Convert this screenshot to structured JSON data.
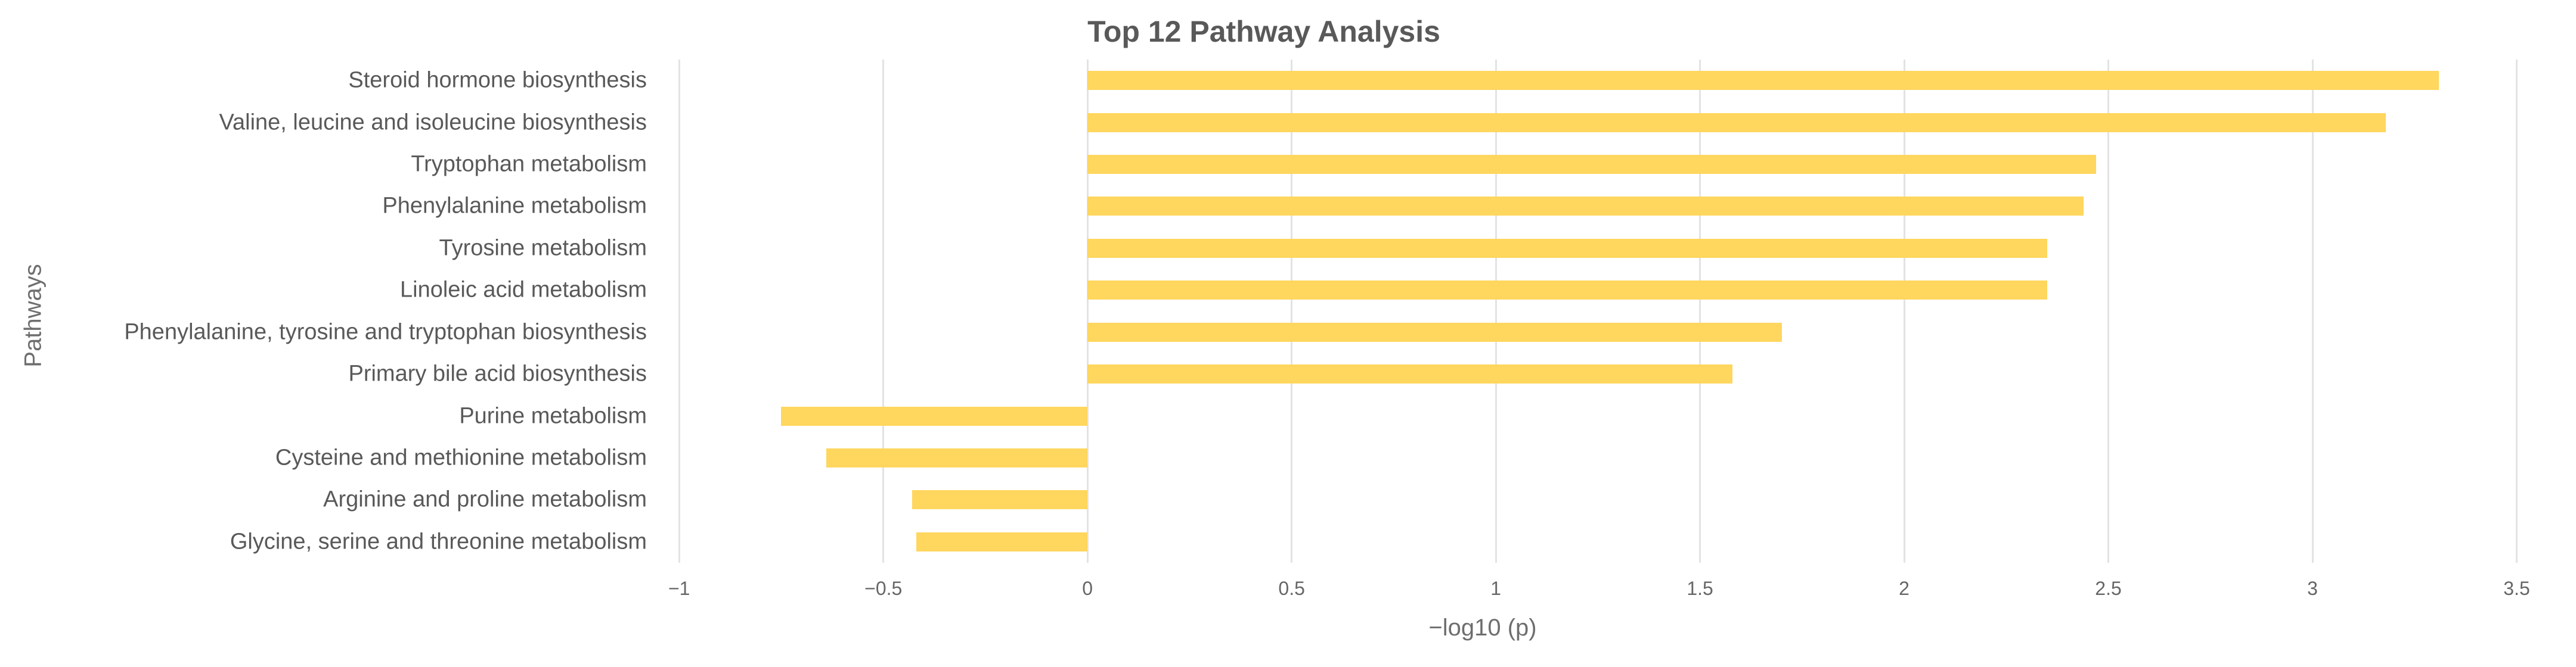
{
  "figure": {
    "title": "Top 12 Pathway Analysis"
  },
  "chart_data": {
    "type": "bar",
    "orientation": "horizontal",
    "title": "Top 12 Pathway Analysis",
    "xlabel": "−log10 (p)",
    "ylabel": "Pathways",
    "categories": [
      "Steroid hormone biosynthesis",
      "Valine, leucine and isoleucine biosynthesis",
      "Tryptophan metabolism",
      "Phenylalanine metabolism",
      "Tyrosine metabolism",
      "Linoleic acid metabolism",
      "Phenylalanine, tyrosine and tryptophan biosynthesis",
      "Primary bile acid biosynthesis",
      "Purine metabolism",
      "Cysteine and methionine metabolism",
      "Arginine and proline metabolism",
      "Glycine, serine and threonine metabolism"
    ],
    "values": [
      3.31,
      3.18,
      2.47,
      2.44,
      2.35,
      2.35,
      1.7,
      1.58,
      -0.75,
      -0.64,
      -0.43,
      -0.42
    ],
    "xlim": [
      -1.05,
      3.6
    ],
    "xticks": [
      -1,
      -0.5,
      0,
      0.5,
      1,
      1.5,
      2,
      2.5,
      3,
      3.5
    ],
    "xtick_labels": [
      "−1",
      "−0.5",
      "0",
      "0.5",
      "1",
      "1.5",
      "2",
      "2.5",
      "3",
      "3.5"
    ],
    "grid": "vertical",
    "legend": "none",
    "colors": {
      "bar": "#FFD65E",
      "grid": "#E3E3E3",
      "title_text": "#595959",
      "category_text": "#595959",
      "tick_text": "#666666",
      "axis_title_text": "#6E6E6E",
      "background": "#FFFFFF"
    }
  }
}
